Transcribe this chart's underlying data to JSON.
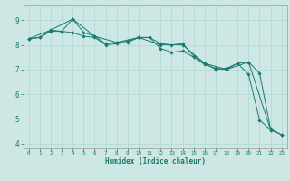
{
  "bg_color": "#cde8e4",
  "line_color": "#1a7a6e",
  "grid_color": "#b0d8d4",
  "xlabel": "Humidex (Indice chaleur)",
  "xlim": [
    -0.5,
    23.5
  ],
  "ylim": [
    3.8,
    9.6
  ],
  "yticks": [
    4,
    5,
    6,
    7,
    8,
    9
  ],
  "xticks": [
    0,
    1,
    2,
    3,
    4,
    5,
    6,
    7,
    8,
    9,
    10,
    11,
    12,
    13,
    14,
    15,
    16,
    17,
    18,
    19,
    20,
    21,
    22,
    23
  ],
  "series1": [
    [
      0,
      8.25
    ],
    [
      1,
      8.3
    ],
    [
      2,
      8.6
    ],
    [
      3,
      8.55
    ],
    [
      4,
      9.05
    ],
    [
      5,
      8.5
    ],
    [
      6,
      8.35
    ],
    [
      7,
      8.05
    ],
    [
      8,
      8.1
    ],
    [
      9,
      8.15
    ],
    [
      10,
      8.3
    ],
    [
      11,
      8.3
    ],
    [
      12,
      8.05
    ],
    [
      13,
      8.0
    ],
    [
      14,
      8.05
    ],
    [
      15,
      7.55
    ],
    [
      16,
      7.25
    ],
    [
      17,
      7.0
    ],
    [
      18,
      7.05
    ],
    [
      19,
      7.25
    ],
    [
      20,
      6.8
    ],
    [
      21,
      4.95
    ],
    [
      22,
      4.55
    ],
    [
      23,
      4.35
    ]
  ],
  "series2": [
    [
      0,
      8.25
    ],
    [
      1,
      8.3
    ],
    [
      2,
      8.55
    ],
    [
      3,
      8.55
    ],
    [
      4,
      8.5
    ],
    [
      5,
      8.35
    ],
    [
      6,
      8.3
    ],
    [
      7,
      8.0
    ],
    [
      8,
      8.05
    ],
    [
      9,
      8.1
    ],
    [
      10,
      8.3
    ],
    [
      11,
      8.3
    ],
    [
      12,
      7.85
    ],
    [
      13,
      7.7
    ],
    [
      14,
      7.75
    ],
    [
      15,
      7.5
    ],
    [
      16,
      7.2
    ],
    [
      17,
      7.05
    ],
    [
      18,
      7.0
    ],
    [
      19,
      7.25
    ],
    [
      20,
      7.3
    ],
    [
      21,
      6.85
    ],
    [
      22,
      4.6
    ],
    [
      23,
      4.35
    ]
  ],
  "series3": [
    [
      0,
      8.25
    ],
    [
      2,
      8.6
    ],
    [
      4,
      9.05
    ],
    [
      6,
      8.35
    ],
    [
      8,
      8.1
    ],
    [
      10,
      8.3
    ],
    [
      12,
      8.0
    ],
    [
      14,
      8.0
    ],
    [
      16,
      7.25
    ],
    [
      18,
      7.0
    ],
    [
      20,
      7.3
    ],
    [
      22,
      4.55
    ]
  ]
}
